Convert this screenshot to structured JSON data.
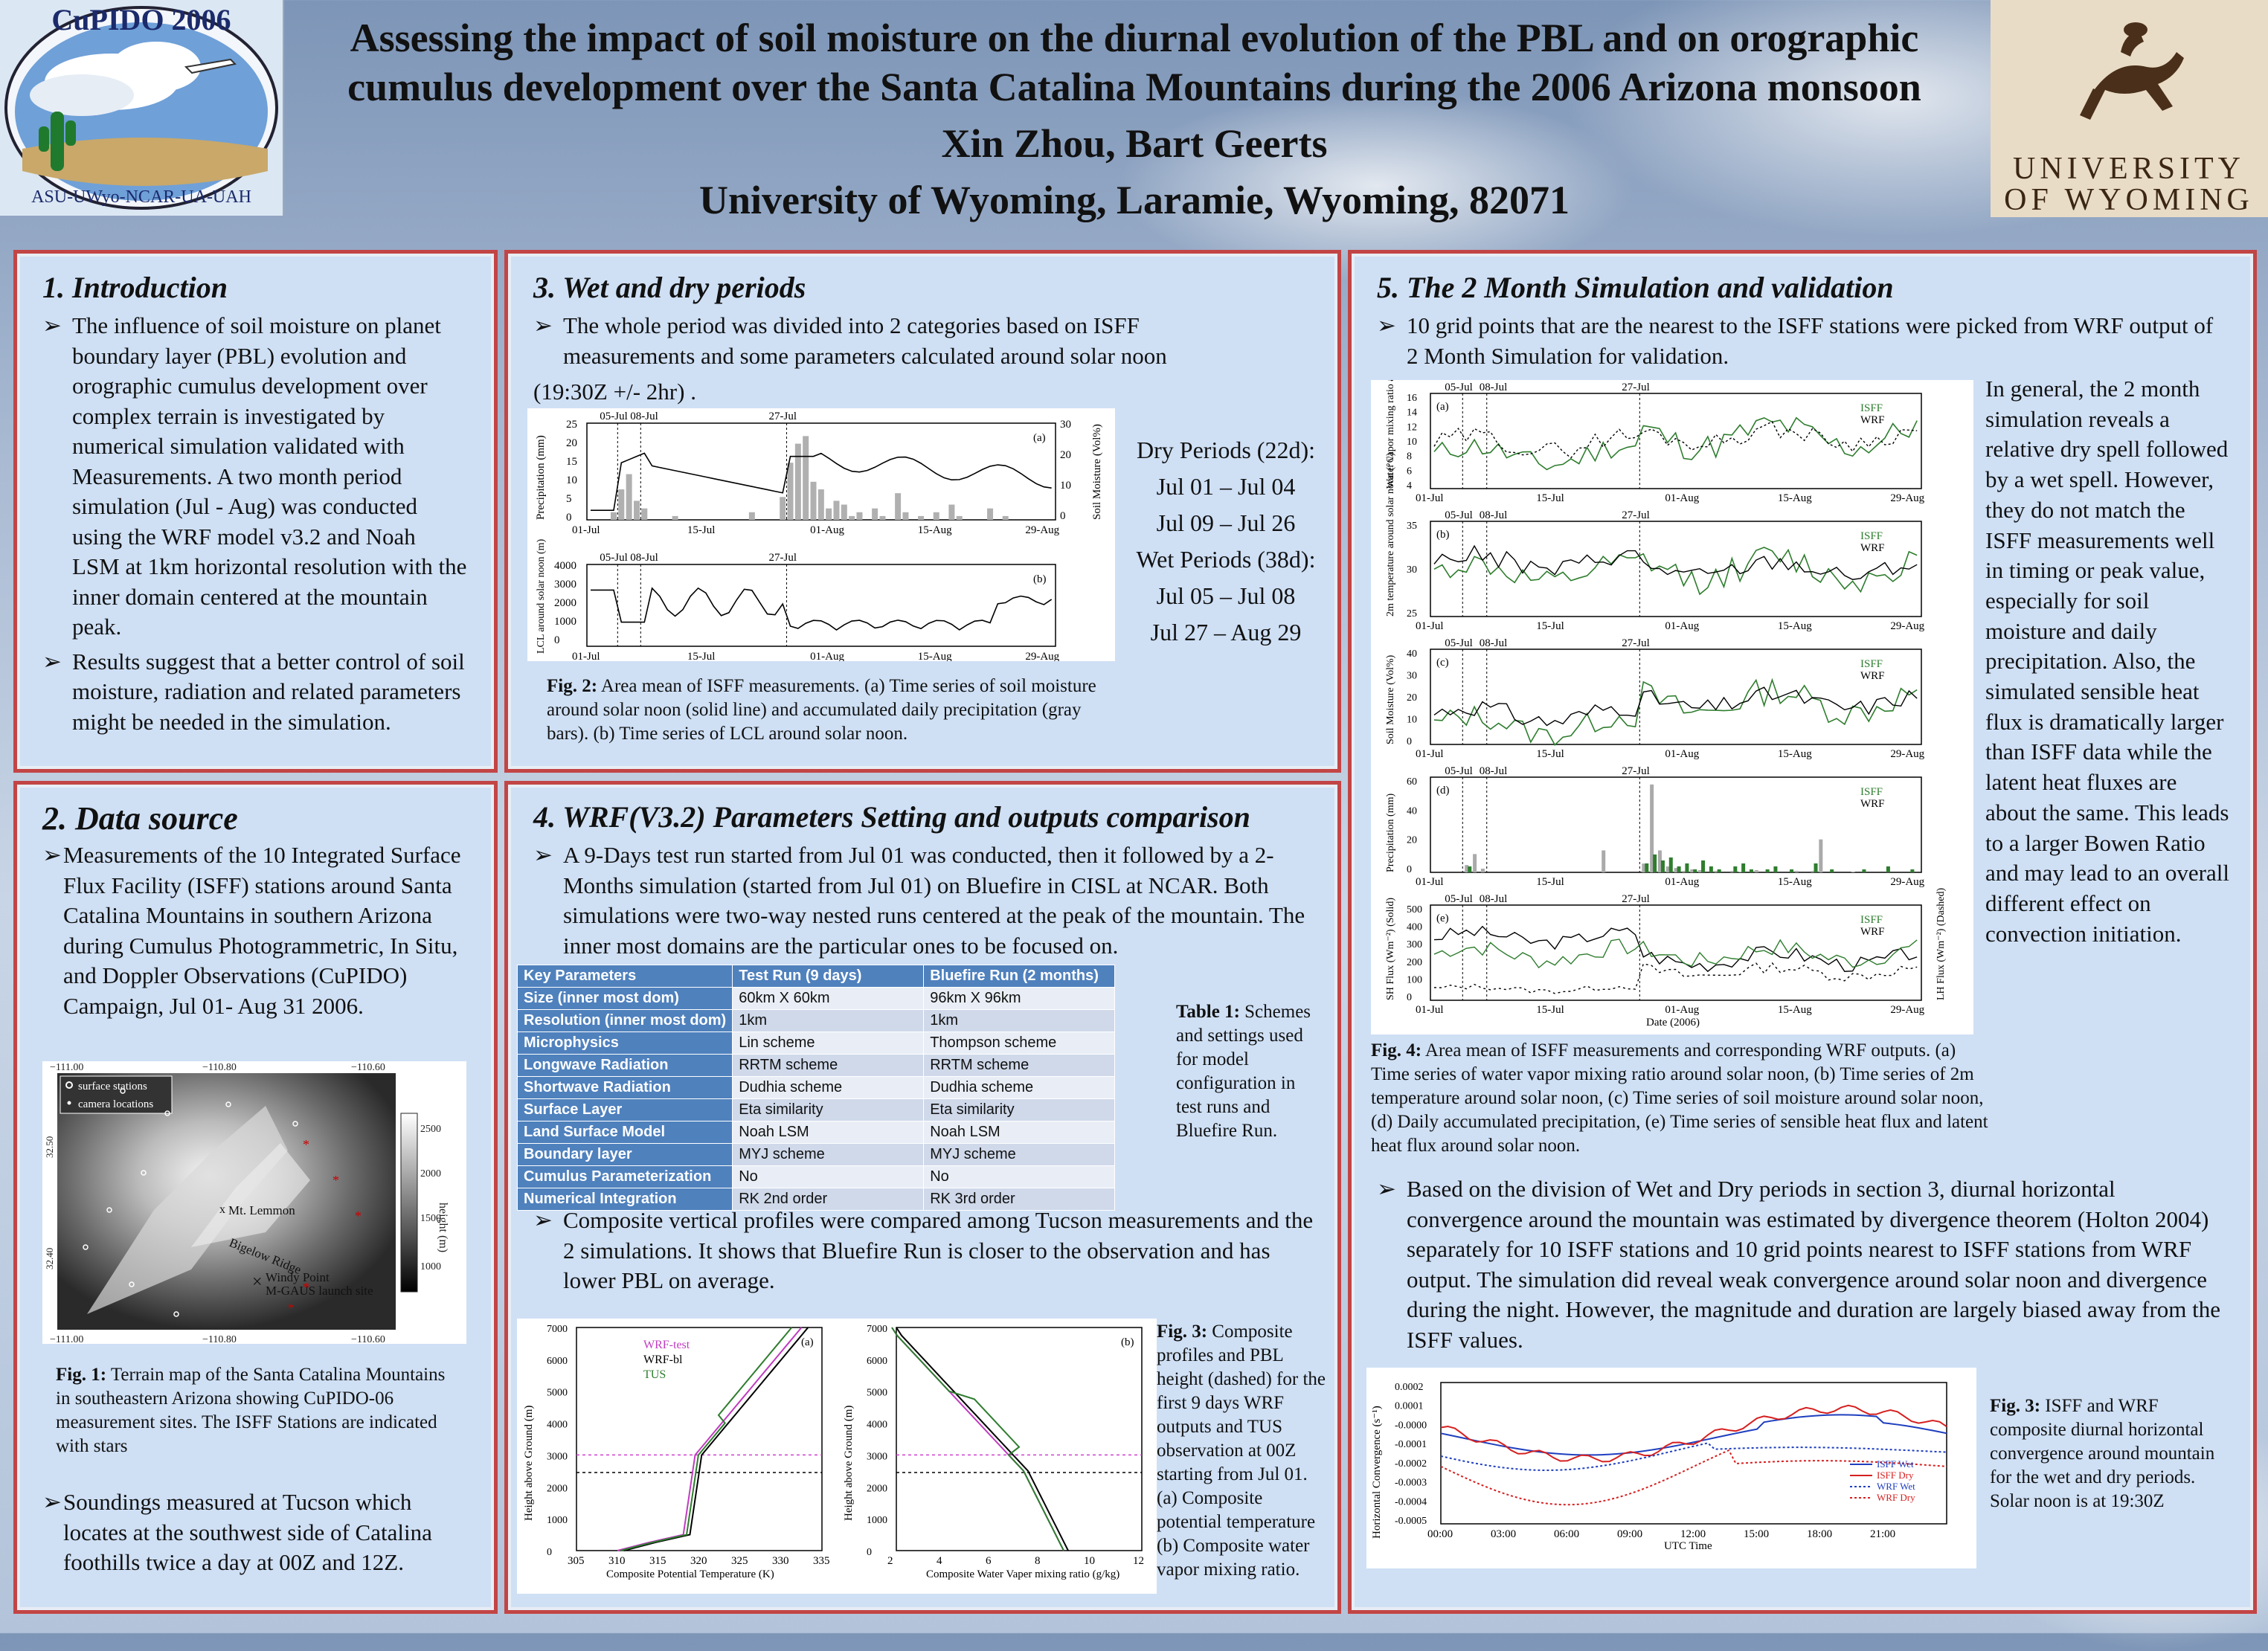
{
  "header": {
    "logo_left_text_top": "CuPIDO 2006",
    "logo_left_text_bottom": "ASU-UWyo-NCAR-UA-UAH",
    "logo_right_line1": "UNIVERSITY",
    "logo_right_line2": "OF WYOMING",
    "title_line1": "Assessing the impact of soil moisture on the diurnal evolution of the PBL and on orographic",
    "title_line2": "cumulus development over the Santa Catalina Mountains during the 2006 Arizona monsoon",
    "authors": "Xin Zhou,  Bart Geerts",
    "affiliation": "University of Wyoming, Laramie, Wyoming, 82071"
  },
  "sec1": {
    "title": "1.   Introduction",
    "b1": "The influence of soil moisture on planet boundary layer (PBL) evolution and orographic cumulus development over complex terrain is investigated by numerical simulation validated with Measurements. A two month period simulation (Jul - Aug) was conducted using the WRF model v3.2 and Noah LSM at 1km horizontal resolution with the inner domain centered at the mountain peak.",
    "b2": "Results suggest that a better control of soil moisture, radiation and related parameters might be needed in the simulation."
  },
  "sec2": {
    "title": "2. Data source",
    "b1": "Measurements of the 10 Integrated Surface Flux Facility (ISFF) stations around Santa Catalina Mountains in southern Arizona during Cumulus Photogrammetric, In Situ, and Doppler Observations (CuPIDO) Campaign, Jul 01- Aug 31 2006.",
    "map": {
      "legend1": "surface stations",
      "legend2": "camera locations",
      "lbl_lemmon": "Mt. Lemmon",
      "lbl_bigelow": "Bigelow Ridge",
      "lbl_windy": "Windy Point",
      "lbl_mgaus": "M-GAUS launch site",
      "scale_label": "height (m)",
      "scale_ticks": [
        "2500",
        "2000",
        "1500",
        "1000"
      ],
      "top_ticks": [
        "−111.00",
        "−110.80",
        "−110.60"
      ],
      "left_ticks": [
        "32.50",
        "32.40"
      ]
    },
    "fig1_label": "Fig. 1:",
    "fig1_caption": " Terrain map of the Santa Catalina Mountains in southeastern Arizona showing CuPIDO-06 measurement sites. The ISFF Stations are indicated with stars",
    "b2": "Soundings measured at Tucson which locates at the southwest side of Catalina foothills twice a day at 00Z and 12Z."
  },
  "sec3": {
    "title": "3.  Wet and dry periods",
    "b1": "The whole period was divided into 2 categories based on ISFF measurements and some parameters calculated around solar noon",
    "b1_tail": "(19:30Z +/- 2hr) .",
    "periods": [
      "Dry Periods (22d):",
      "Jul 01 – Jul 04",
      "Jul 09 – Jul 26",
      "Wet Periods (38d):",
      "Jul 05 – Jul 08",
      "Jul 27 – Aug 29"
    ],
    "fig2_label": "Fig. 2:",
    "fig2_caption": " Area mean of ISFF measurements. (a) Time series of soil moisture around solar noon (solid line) and accumulated daily precipitation (gray bars). (b) Time series of LCL around solar noon."
  },
  "fig2": {
    "a_ylabel": "Precipitation (mm)",
    "a_y2label": "Soil Moisture (Vol%)",
    "b_ylabel": "LCL around solar noon (m)",
    "panel_a": "(a)",
    "panel_b": "(b)",
    "markers": [
      "05-Jul",
      "08-Jul",
      "27-Jul"
    ],
    "xticks": [
      "01-Jul",
      "15-Jul",
      "01-Aug",
      "15-Aug",
      "29-Aug"
    ],
    "a_yticks": [
      "25",
      "20",
      "15",
      "10",
      "5",
      "0"
    ],
    "a_y2ticks": [
      "30",
      "20",
      "10",
      "0"
    ],
    "b_yticks": [
      "4000",
      "3000",
      "2000",
      "1000",
      "0"
    ]
  },
  "sec4": {
    "title": "4.   WRF(V3.2) Parameters Setting and outputs comparison",
    "b1": "A 9-Days test run started from Jul 01 was conducted, then it followed by a 2-Months simulation (started from Jul 01) on Bluefire in CISL at NCAR. Both simulations were two-way nested runs centered at the peak of the mountain. The inner most domains are the particular ones to be focused on.",
    "table": {
      "headers": [
        "Key Parameters",
        "Test Run (9 days)",
        "Bluefire Run (2 months)"
      ],
      "rows": [
        [
          "Size (inner most dom)",
          "60km X 60km",
          "96km X 96km"
        ],
        [
          "Resolution (inner most dom)",
          "1km",
          "1km"
        ],
        [
          "Microphysics",
          "Lin scheme",
          "Thompson scheme"
        ],
        [
          "Longwave Radiation",
          "RRTM scheme",
          "RRTM scheme"
        ],
        [
          "Shortwave Radiation",
          "Dudhia scheme",
          "Dudhia scheme"
        ],
        [
          "Surface Layer",
          "Eta similarity",
          "Eta similarity"
        ],
        [
          "Land Surface Model",
          "Noah LSM",
          "Noah LSM"
        ],
        [
          "Boundary layer",
          "MYJ scheme",
          "MYJ scheme"
        ],
        [
          "Cumulus Parameterization",
          "No",
          "No"
        ],
        [
          "Numerical Integration",
          "RK 2nd order",
          "RK 3rd order"
        ]
      ]
    },
    "table_label": "Table 1:",
    "table_caption": " Schemes and settings used for model configuration in test runs and Bluefire Run.",
    "b2": "Composite vertical profiles were compared among Tucson measurements and the 2 simulations. It shows that Bluefire Run is closer to the observation and has lower PBL on average.",
    "fig3_label": "Fig. 3:",
    "fig3_caption": " Composite profiles and PBL height (dashed) for the first 9 days WRF outputs and TUS observation at 00Z starting from Jul 01. (a) Composite potential temperature (b) Composite water vapor mixing ratio."
  },
  "fig3": {
    "a_xlabel": "Composite Potential Temperature (K)",
    "b_xlabel": "Composite Water Vaper mixing ratio (g/kg)",
    "ylabel": "Height above Ground (m)",
    "panel_a": "(a)",
    "panel_b": "(b)",
    "legend": [
      "WRF-test",
      "WRF-bl",
      "TUS"
    ],
    "a_xticks": [
      "305",
      "310",
      "315",
      "320",
      "325",
      "330",
      "335"
    ],
    "b_xticks": [
      "2",
      "4",
      "6",
      "8",
      "10",
      "12"
    ],
    "yticks": [
      "7000",
      "6000",
      "5000",
      "4000",
      "3000",
      "2000",
      "1000",
      "0"
    ],
    "colors": {
      "wrf_test": "#c03cc0",
      "wrf_bl": "#000000",
      "tus": "#2e7d2e",
      "pbl_test": "#d040d0",
      "pbl_bl": "#000000"
    }
  },
  "sec5": {
    "title": "5.  The 2 Month Simulation and validation",
    "b1": "10 grid points that are the nearest to the ISFF stations were picked from WRF output of 2 Month Simulation for validation.",
    "side_text": "In general, the 2 month simulation reveals a relative dry spell followed by a wet spell. However, they do not match the ISFF measurements well in timing or peak value, especially for soil moisture and daily precipitation. Also, the simulated sensible heat flux is dramatically larger than ISFF data while the latent heat fluxes are about the same. This leads to a larger Bowen Ratio and may lead to an overall different effect on convection initiation.",
    "fig4_label": "Fig. 4:",
    "fig4_caption": " Area mean of ISFF measurements and corresponding WRF outputs. (a) Time series of water vapor mixing ratio around solar noon, (b) Time series of 2m temperature around solar noon, (c) Time series of soil moisture around solar noon, (d) Daily accumulated precipitation, (e) Time series of sensible heat flux and latent heat flux around solar noon.",
    "b2": "Based on the division of Wet and Dry periods in section 3, diurnal horizontal convergence around the mountain was estimated by divergence theorem (Holton 2004) separately for 10 ISFF stations and 10 grid points nearest to ISFF stations from WRF output. The simulation did reveal weak convergence around solar noon and divergence during the night. However, the magnitude and duration are largely biased away from the ISFF values.",
    "fig5_label": "Fig. 3:",
    "fig5_caption": " ISFF and WRF composite diurnal horizontal convergence around mountain for the wet and dry periods. Solar noon is at 19:30Z"
  },
  "fig4": {
    "markers": [
      "05-Jul",
      "08-Jul",
      "27-Jul"
    ],
    "xticks": [
      "01-Jul",
      "15-Jul",
      "01-Aug",
      "15-Aug",
      "29-Aug"
    ],
    "xlabel": "Date (2006)",
    "legend": [
      "ISFF",
      "WRF"
    ],
    "panels": [
      {
        "tag": "(a)",
        "ylabel": "Water vapor mixing ratio at 2m (g/kg)",
        "yticks": [
          "16",
          "14",
          "12",
          "10",
          "8",
          "6",
          "4"
        ]
      },
      {
        "tag": "(b)",
        "ylabel": "2m temperature around solar noon (°C)",
        "yticks": [
          "35",
          "30",
          "25"
        ]
      },
      {
        "tag": "(c)",
        "ylabel": "Soil Moisture (Vol%)",
        "yticks": [
          "40",
          "30",
          "20",
          "10",
          "0"
        ]
      },
      {
        "tag": "(d)",
        "ylabel": "Precipitation (mm)",
        "yticks": [
          "60",
          "40",
          "20",
          "0"
        ]
      },
      {
        "tag": "(e)",
        "ylabel": "SH Flux (Wm⁻²) (Solid)",
        "y2label": "LH Flux (Wm⁻²) (Dashed)",
        "yticks": [
          "500",
          "400",
          "300",
          "200",
          "100",
          "0"
        ]
      }
    ],
    "colors": {
      "isff": "#2e7d2e",
      "wrf": "#333333"
    }
  },
  "fig5": {
    "ylabel": "Horizontal Convergence (s⁻¹)",
    "xlabel": "UTC Time",
    "xticks": [
      "00:00",
      "03:00",
      "06:00",
      "09:00",
      "12:00",
      "15:00",
      "18:00",
      "21:00"
    ],
    "yticks": [
      "0.0002",
      "0.0001",
      "-0.0000",
      "-0.0001",
      "-0.0002",
      "-0.0003",
      "-0.0004",
      "-0.0005"
    ],
    "legend": [
      "ISFF Wet",
      "ISFF Dry",
      "WRF Wet",
      "WRF Dry"
    ],
    "colors": {
      "isff_wet": "#1f3fbf",
      "isff_dry": "#d62020",
      "wrf_wet": "#1f3fbf",
      "wrf_dry": "#d62020"
    }
  }
}
